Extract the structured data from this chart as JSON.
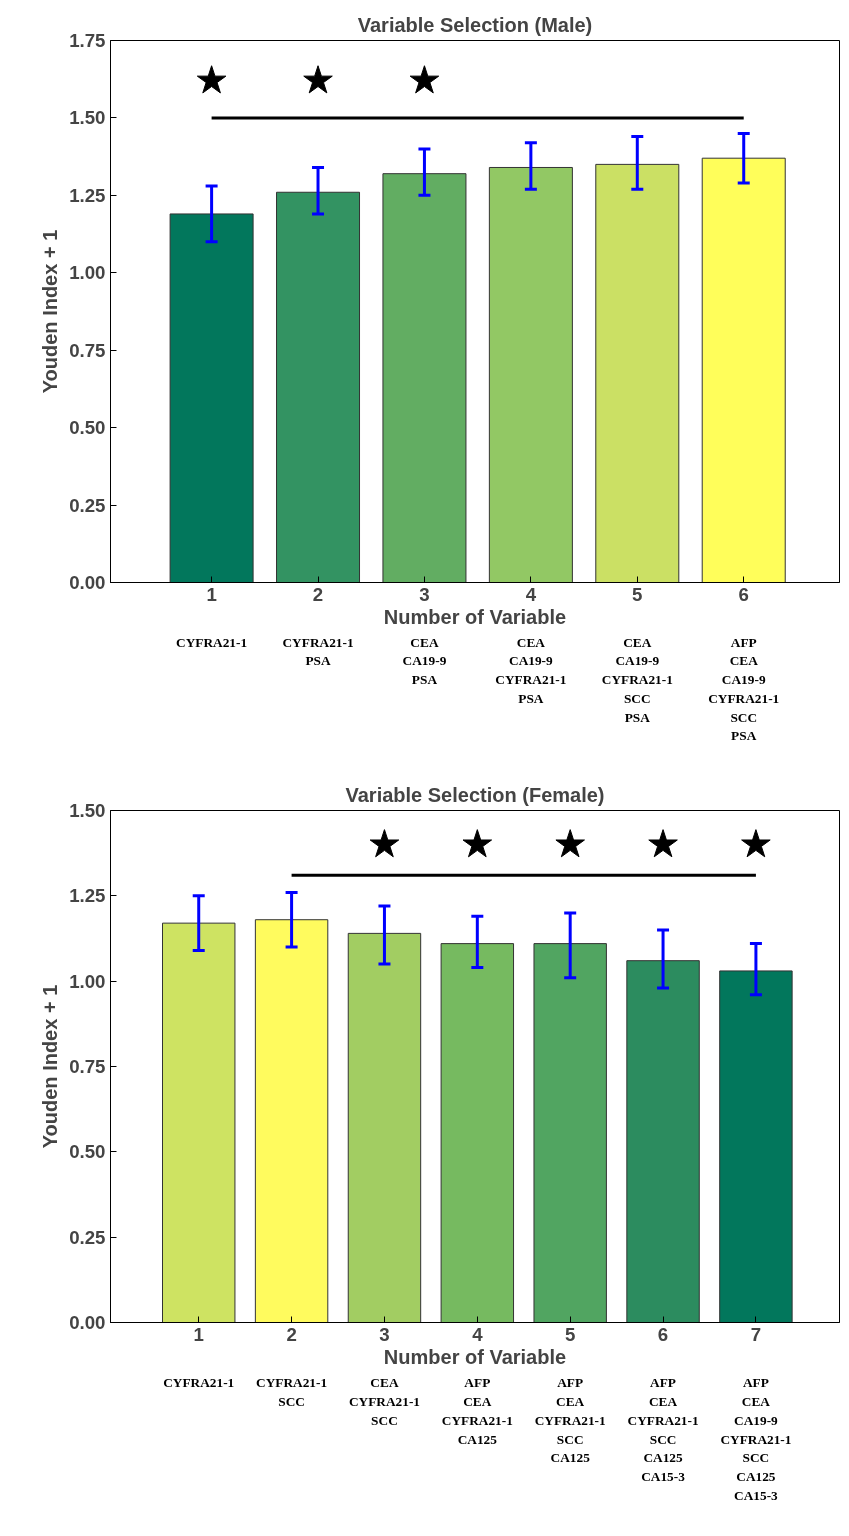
{
  "chart_data": [
    {
      "type": "bar",
      "title": "Variable Selection (Male)",
      "xlabel": "Number of Variable",
      "ylabel": "Youden Index + 1",
      "categories": [
        "1",
        "2",
        "3",
        "4",
        "5",
        "6"
      ],
      "series": [
        {
          "colors": [
            "#02775c",
            "#339362",
            "#62ad62",
            "#92c864",
            "#cbe064",
            "#fffe5a"
          ],
          "values": [
            1.19,
            1.26,
            1.32,
            1.34,
            1.35,
            1.37
          ],
          "errors": [
            [
              1.1,
              1.28
            ],
            [
              1.19,
              1.34
            ],
            [
              1.25,
              1.4
            ],
            [
              1.27,
              1.42
            ],
            [
              1.27,
              1.44
            ],
            [
              1.29,
              1.45
            ]
          ]
        },
        {
          "type": "line",
          "color": "#000000",
          "x": [
            "1",
            "6"
          ],
          "values": [
            1.5,
            1.5
          ]
        },
        {
          "type": "scatter",
          "marker": "star",
          "color": "#000000",
          "x": [
            "1",
            "2",
            "3"
          ],
          "values": [
            1.62,
            1.62,
            1.62
          ]
        }
      ],
      "ylim": [
        0,
        1.75
      ],
      "yticks": [
        {
          "value": 0,
          "label": "0.00"
        },
        {
          "value": 0.25,
          "label": "0.25"
        },
        {
          "value": 0.5,
          "label": "0.50"
        },
        {
          "value": 0.75,
          "label": "0.75"
        },
        {
          "value": 1,
          "label": "1.00"
        },
        {
          "value": 1.25,
          "label": "1.25"
        },
        {
          "value": 1.5,
          "label": "1.50"
        },
        {
          "value": 1.75,
          "label": "1.75"
        }
      ],
      "grid": false,
      "annotations": [
        "CYFRA21-1",
        "CYFRA21-1\nPSA",
        "CEA\nCA19-9\nPSA",
        "CEA\nCA19-9\nCYFRA21-1\nPSA",
        "CEA\nCA19-9\nCYFRA21-1\nSCC\nPSA",
        "AFP\nCEA\nCA19-9\nCYFRA21-1\nSCC\nPSA"
      ]
    },
    {
      "type": "bar",
      "title": "Variable Selection (Female)",
      "xlabel": "Number of Variable",
      "ylabel": "Youden Index + 1",
      "categories": [
        "1",
        "2",
        "3",
        "4",
        "5",
        "6",
        "7"
      ],
      "series": [
        {
          "colors": [
            "#cee362",
            "#fffb5e",
            "#a2cd62",
            "#76ba60",
            "#51a561",
            "#2c8c5f",
            "#02775c"
          ],
          "values": [
            1.17,
            1.18,
            1.14,
            1.11,
            1.11,
            1.06,
            1.03
          ],
          "errors": [
            [
              1.09,
              1.25
            ],
            [
              1.1,
              1.26
            ],
            [
              1.05,
              1.22
            ],
            [
              1.04,
              1.19
            ],
            [
              1.01,
              1.2
            ],
            [
              0.98,
              1.15
            ],
            [
              0.96,
              1.11
            ]
          ]
        },
        {
          "type": "line",
          "color": "#000000",
          "x": [
            "2",
            "7"
          ],
          "values": [
            1.31,
            1.31
          ]
        },
        {
          "type": "scatter",
          "marker": "star",
          "color": "#000000",
          "x": [
            "3",
            "4",
            "5",
            "6",
            "7"
          ],
          "values": [
            1.4,
            1.4,
            1.4,
            1.4,
            1.4
          ]
        }
      ],
      "ylim": [
        0,
        1.5
      ],
      "yticks": [
        {
          "value": 0,
          "label": "0.00"
        },
        {
          "value": 0.25,
          "label": "0.25"
        },
        {
          "value": 0.5,
          "label": "0.50"
        },
        {
          "value": 0.75,
          "label": "0.75"
        },
        {
          "value": 1,
          "label": "1.00"
        },
        {
          "value": 1.25,
          "label": "1.25"
        },
        {
          "value": 1.5,
          "label": "1.50"
        }
      ],
      "grid": false,
      "annotations": [
        "CYFRA21-1",
        "CYFRA21-1\nSCC",
        "CEA\nCYFRA21-1\nSCC",
        "AFP\nCEA\nCYFRA21-1\nCA125",
        "AFP\nCEA\nCYFRA21-1\nSCC\nCA125",
        "AFP\nCEA\nCYFRA21-1\nSCC\nCA125\nCA15-3",
        "AFP\nCEA\nCA19-9\nCYFRA21-1\nSCC\nCA125\nCA15-3"
      ]
    }
  ]
}
